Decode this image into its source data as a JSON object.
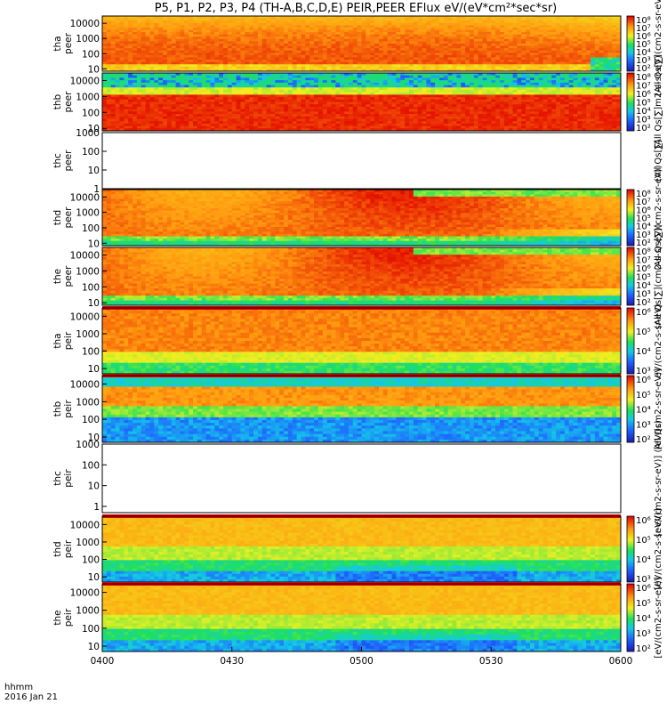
{
  "chart_data": {
    "type": "heatmap",
    "title": "P5, P1, P2, P3, P4 (TH-A,B,C,D,E) PEIR,PEER EFlux eV/(eV*cm²*sec*sr)",
    "x_ticks": [
      "0400",
      "0430",
      "0500",
      "0530",
      "0600"
    ],
    "x_minutes": [
      0,
      30,
      60,
      90,
      120
    ],
    "x_corner_label": "hhmm",
    "date_label": "2016 Jan 21",
    "log_y": true,
    "colorscale": "rainbow",
    "panels": [
      {
        "name": "tha-peer",
        "ylabel": [
          "tha",
          "peer"
        ],
        "yticks": [
          "10",
          "100",
          "1000",
          "10000"
        ],
        "ytick_values": [
          10,
          100,
          1000,
          10000
        ],
        "ylim": [
          7,
          30000
        ],
        "data": true,
        "has_colorbar": true,
        "cbar_ticks": [
          "10²",
          "10³",
          "10⁴",
          "10⁵",
          "10⁶",
          "10⁷",
          "10⁸"
        ],
        "cbar_label": "(All Qs[∑](cm2-s-sr-eV))"
      },
      {
        "name": "thb-peer",
        "ylabel": [
          "thb",
          "peer"
        ],
        "yticks": [
          "10",
          "100",
          "1000",
          "10000"
        ],
        "ytick_values": [
          10,
          100,
          1000,
          10000
        ],
        "ylim": [
          7,
          30000
        ],
        "data": true,
        "has_colorbar": true,
        "cbar_ticks": [
          "10²",
          "10³",
          "10⁴",
          "10⁵",
          "10⁶",
          "10⁷",
          "10⁸"
        ],
        "cbar_label": "(All Qs[∑]m2-s-sr-eV)"
      },
      {
        "name": "thc-peer",
        "ylabel": [
          "thc",
          "peer"
        ],
        "yticks": [
          "1",
          "10",
          "100",
          "1000"
        ],
        "ytick_values": [
          1,
          10,
          100,
          1000
        ],
        "ylim": [
          1,
          1000
        ],
        "data": false,
        "has_colorbar": false,
        "cbar_ticks": [],
        "cbar_label": "(All Qs[∑]"
      },
      {
        "name": "thd-peer",
        "ylabel": [
          "thd",
          "peer"
        ],
        "yticks": [
          "10",
          "100",
          "1000",
          "10000"
        ],
        "ytick_values": [
          10,
          100,
          1000,
          10000
        ],
        "ylim": [
          7,
          30000
        ],
        "data": true,
        "has_colorbar": true,
        "cbar_ticks": [
          "10²",
          "10³",
          "10⁴",
          "10⁵",
          "10⁶",
          "10⁷",
          "10⁸"
        ],
        "cbar_label": "(All Qs[∑](cm2-s-sr-eV))"
      },
      {
        "name": "the-peer",
        "ylabel": [
          "the",
          "peer"
        ],
        "yticks": [
          "10",
          "100",
          "1000",
          "10000"
        ],
        "ytick_values": [
          10,
          100,
          1000,
          10000
        ],
        "ylim": [
          7,
          30000
        ],
        "data": true,
        "has_colorbar": true,
        "cbar_ticks": [
          "10²",
          "10³",
          "10⁴",
          "10⁵",
          "10⁶",
          "10⁷",
          "10⁸"
        ],
        "cbar_label": "(All Qs[∑](cm2-s-sr-eV))"
      },
      {
        "name": "tha-peir",
        "ylabel": [
          "tha",
          "peir"
        ],
        "yticks": [
          "10",
          "100",
          "1000",
          "10000"
        ],
        "ytick_values": [
          10,
          100,
          1000,
          10000
        ],
        "ylim": [
          5,
          30000
        ],
        "data": true,
        "has_colorbar": true,
        "cbar_ticks": [
          "10³",
          "10⁴",
          "10⁵",
          "10⁶"
        ],
        "cbar_label": "eV/(cm2-s-sr-eV)"
      },
      {
        "name": "thb-peir",
        "ylabel": [
          "thb",
          "peir"
        ],
        "yticks": [
          "10",
          "100",
          "1000",
          "10000"
        ],
        "ytick_values": [
          10,
          100,
          1000,
          10000
        ],
        "ylim": [
          5,
          30000
        ],
        "data": true,
        "has_colorbar": true,
        "cbar_ticks": [
          "10²",
          "10³",
          "10⁴",
          "10⁵",
          "10⁶"
        ],
        "cbar_label": "[eV/(cm2-s-sr-eV)]"
      },
      {
        "name": "thc-peir",
        "ylabel": [
          "thc",
          "peir"
        ],
        "yticks": [
          "1",
          "10",
          "100",
          "1000"
        ],
        "ytick_values": [
          1,
          10,
          100,
          1000
        ],
        "ylim": [
          0.5,
          1000
        ],
        "data": false,
        "has_colorbar": false,
        "cbar_ticks": [],
        "cbar_label": "[eV/(cm2-s-sr-eV)] (All Qs)"
      },
      {
        "name": "thd-peir",
        "ylabel": [
          "thd",
          "peir"
        ],
        "yticks": [
          "10",
          "100",
          "1000",
          "10000"
        ],
        "ytick_values": [
          10,
          100,
          1000,
          10000
        ],
        "ylim": [
          5,
          30000
        ],
        "data": true,
        "has_colorbar": true,
        "cbar_ticks": [
          "10³",
          "10⁴",
          "10⁵",
          "10⁶"
        ],
        "cbar_label": "[eV/(cm2-s-sr-eV)]"
      },
      {
        "name": "the-peir",
        "ylabel": [
          "the",
          "peir"
        ],
        "yticks": [
          "10",
          "100",
          "1000",
          "10000"
        ],
        "ytick_values": [
          10,
          100,
          1000,
          10000
        ],
        "ylim": [
          5,
          30000
        ],
        "data": true,
        "has_colorbar": true,
        "cbar_ticks": [
          "10²",
          "10³",
          "10⁴",
          "10⁵",
          "10⁶"
        ],
        "cbar_label": "[eV/(cm2-s-sr-eV)]"
      }
    ]
  }
}
